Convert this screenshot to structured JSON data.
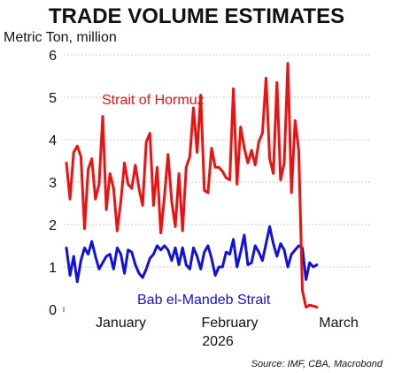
{
  "chart_data": {
    "type": "line",
    "title": "TRADE VOLUME ESTIMATES",
    "ylabel": "Metric Ton, million",
    "xlabel": "2026",
    "source": "Source: IMF, CBA, Macrobond",
    "ylim": [
      0,
      6
    ],
    "yticks": [
      "0",
      "1",
      "2",
      "3",
      "4",
      "5",
      "6"
    ],
    "xticks": [
      {
        "label": "January",
        "date": "2026-01-15"
      },
      {
        "label": "February",
        "date": "2026-02-14"
      },
      {
        "label": "March",
        "date": "2026-03-16"
      }
    ],
    "x_start": "2025-12-31",
    "grid": true,
    "colors": {
      "hormuz": "#ee1111",
      "bab": "#1111dd",
      "grid": "#c8c8c8"
    },
    "series": [
      {
        "name": "Strait of Hormuz",
        "color": "#ee1111",
        "values": [
          3.45,
          2.6,
          3.7,
          3.85,
          3.6,
          1.9,
          3.3,
          3.55,
          2.6,
          2.95,
          4.55,
          2.35,
          3.2,
          2.85,
          1.85,
          2.55,
          3.45,
          2.95,
          2.85,
          3.4,
          2.85,
          2.45,
          3.95,
          4.15,
          2.45,
          3.35,
          1.8,
          2.65,
          3.65,
          2.55,
          1.95,
          3.2,
          1.85,
          3.35,
          3.6,
          4.75,
          3.7,
          5.05,
          2.8,
          2.75,
          3.8,
          3.35,
          3.35,
          3.25,
          3.1,
          3.05,
          5.2,
          2.95,
          4.3,
          3.8,
          3.45,
          3.75,
          3.4,
          3.95,
          4.15,
          5.45,
          3.55,
          3.2,
          5.35,
          3.05,
          3.45,
          5.8,
          2.75,
          4.45,
          3.75,
          0.45,
          0.05,
          0.1,
          0.08,
          0.05
        ]
      },
      {
        "name": "Bab el-Mandeb Strait",
        "color": "#1111dd",
        "values": [
          1.45,
          0.8,
          1.25,
          0.65,
          1.15,
          1.45,
          1.3,
          1.6,
          1.25,
          0.95,
          1.1,
          1.25,
          1.3,
          0.95,
          1.45,
          1.3,
          0.85,
          1.4,
          1.35,
          1.05,
          0.85,
          0.75,
          0.95,
          1.2,
          1.3,
          1.5,
          1.4,
          1.5,
          1.4,
          1.15,
          1.45,
          1.05,
          1.45,
          1.05,
          0.95,
          1.45,
          1.25,
          0.95,
          1.35,
          1.5,
          1.2,
          0.8,
          1.0,
          1.0,
          1.35,
          1.3,
          1.65,
          1.0,
          1.35,
          1.75,
          1.05,
          1.1,
          1.5,
          1.35,
          1.15,
          1.55,
          1.95,
          1.55,
          1.25,
          1.55,
          1.4,
          1.0,
          1.3,
          1.4,
          1.5,
          1.45,
          0.7,
          1.1,
          1.0,
          1.05
        ]
      }
    ],
    "annotations": [
      {
        "text": "Strait of Hormuz",
        "series": 0
      },
      {
        "text": "Bab el-Mandeb Strait",
        "series": 1
      }
    ]
  }
}
